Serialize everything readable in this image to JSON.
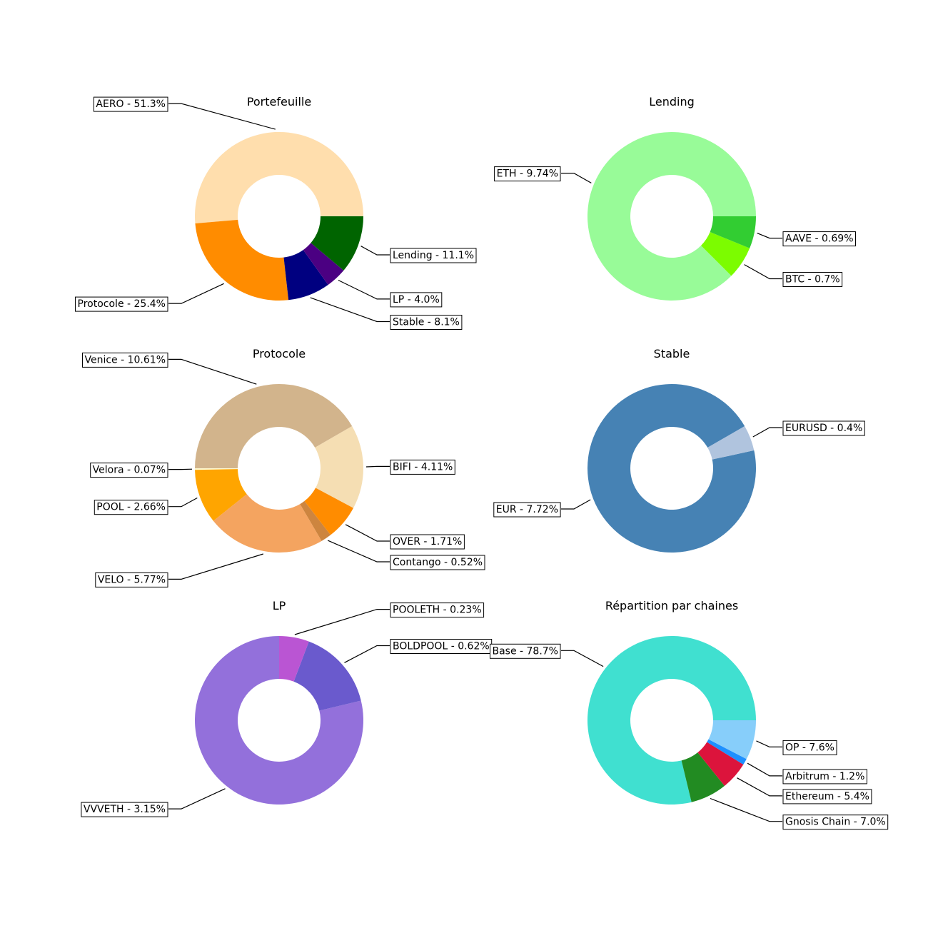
{
  "chart_data": [
    {
      "type": "pie",
      "variant": "donut",
      "title": "Portefeuille",
      "slices": [
        {
          "label": "AERO - 51.3%",
          "value": 51.3,
          "color": "#FFDEAD"
        },
        {
          "label": "Protocole - 25.4%",
          "value": 25.4,
          "color": "#FF8C00"
        },
        {
          "label": "Stable - 8.1%",
          "value": 8.1,
          "color": "#000080"
        },
        {
          "label": "LP - 4.0%",
          "value": 4.0,
          "color": "#4B0082"
        },
        {
          "label": "Lending - 11.1%",
          "value": 11.1,
          "color": "#006400"
        }
      ]
    },
    {
      "type": "pie",
      "variant": "donut",
      "title": "Lending",
      "slices": [
        {
          "label": "ETH - 9.74%",
          "value": 9.74,
          "color": "#98FB98"
        },
        {
          "label": "BTC - 0.7%",
          "value": 0.7,
          "color": "#7CFC00"
        },
        {
          "label": "AAVE - 0.69%",
          "value": 0.69,
          "color": "#32CD32"
        }
      ]
    },
    {
      "type": "pie",
      "variant": "donut",
      "title": "Protocole",
      "slices": [
        {
          "label": "Venice - 10.61%",
          "value": 10.61,
          "color": "#D2B48C"
        },
        {
          "label": "Velora - 0.07%",
          "value": 0.07,
          "color": "#FFFACD"
        },
        {
          "label": "POOL - 2.66%",
          "value": 2.66,
          "color": "#FFA500"
        },
        {
          "label": "VELO - 5.77%",
          "value": 5.77,
          "color": "#F4A460"
        },
        {
          "label": "Contango - 0.52%",
          "value": 0.52,
          "color": "#CD853F"
        },
        {
          "label": "OVER - 1.71%",
          "value": 1.71,
          "color": "#FF8C00"
        },
        {
          "label": "BIFI - 4.11%",
          "value": 4.11,
          "color": "#F5DEB3"
        }
      ]
    },
    {
      "type": "pie",
      "variant": "donut",
      "title": "Stable",
      "slices": [
        {
          "label": "EUR - 7.72%",
          "value": 7.72,
          "color": "#4682B4"
        },
        {
          "label": "EURUSD - 0.4%",
          "value": 0.4,
          "color": "#B0C4DE"
        }
      ]
    },
    {
      "type": "pie",
      "variant": "donut",
      "title": "LP",
      "slices": [
        {
          "label": "VVVETH - 3.15%",
          "value": 3.15,
          "color": "#9370DB"
        },
        {
          "label": "BOLDPOOL - 0.62%",
          "value": 0.62,
          "color": "#6A5ACD"
        },
        {
          "label": "POOLETH - 0.23%",
          "value": 0.23,
          "color": "#BA55D3"
        }
      ]
    },
    {
      "type": "pie",
      "variant": "donut",
      "title": "Répartition par chaines",
      "slices": [
        {
          "label": "Base - 78.7%",
          "value": 78.7,
          "color": "#40E0D0"
        },
        {
          "label": "Gnosis Chain - 7.0%",
          "value": 7.0,
          "color": "#228B22"
        },
        {
          "label": "Ethereum - 5.4%",
          "value": 5.4,
          "color": "#DC143C"
        },
        {
          "label": "Arbitrum - 1.2%",
          "value": 1.2,
          "color": "#1E90FF"
        },
        {
          "label": "OP - 7.6%",
          "value": 7.6,
          "color": "#87CEFA"
        }
      ]
    }
  ]
}
